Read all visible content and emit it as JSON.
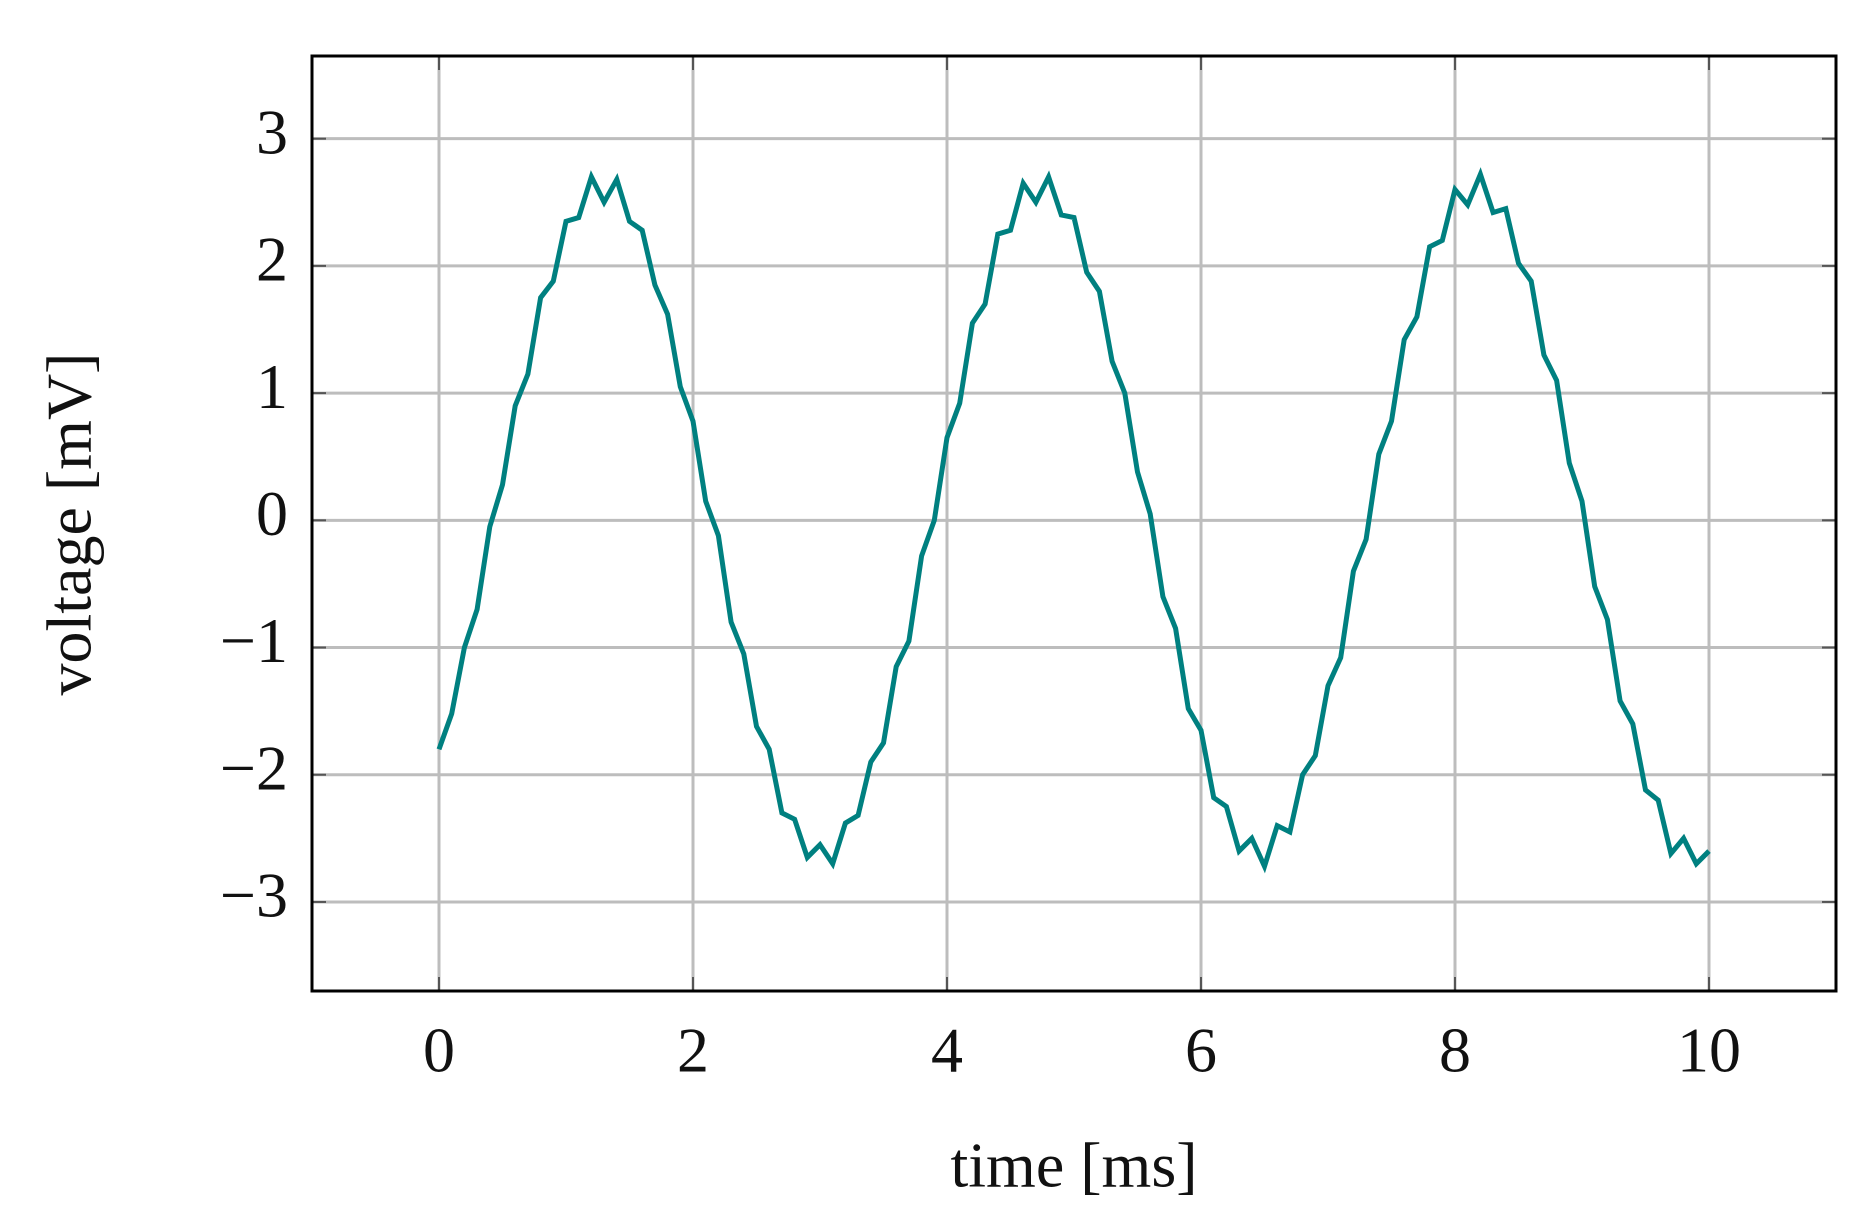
{
  "chart_data": {
    "type": "line",
    "x_label": "time [ms]",
    "y_label": "voltage [mV]",
    "x": [
      0,
      0.1,
      0.2,
      0.3,
      0.4,
      0.5,
      0.6,
      0.7,
      0.8,
      0.9,
      1,
      1.1,
      1.2,
      1.3,
      1.4,
      1.5,
      1.6,
      1.7,
      1.8,
      1.9,
      2,
      2.1,
      2.2,
      2.3,
      2.4,
      2.5,
      2.6,
      2.7,
      2.8,
      2.9,
      3,
      3.1,
      3.2,
      3.3,
      3.4,
      3.5,
      3.6,
      3.7,
      3.8,
      3.9,
      4,
      4.1,
      4.2,
      4.3,
      4.4,
      4.5,
      4.6,
      4.7,
      4.8,
      4.9,
      5,
      5.1,
      5.2,
      5.3,
      5.4,
      5.5,
      5.6,
      5.7,
      5.8,
      5.9,
      6,
      6.1,
      6.2,
      6.3,
      6.4,
      6.5,
      6.6,
      6.7,
      6.8,
      6.9,
      7,
      7.1,
      7.2,
      7.3,
      7.4,
      7.5,
      7.6,
      7.7,
      7.8,
      7.9,
      8,
      8.1,
      8.2,
      8.3,
      8.4,
      8.5,
      8.6,
      8.7,
      8.8,
      8.9,
      9,
      9.1,
      9.2,
      9.3,
      9.4,
      9.5,
      9.6,
      9.7,
      9.8,
      9.9,
      10
    ],
    "values": [
      -1.8,
      -1.52,
      -1.0,
      -0.7,
      -0.05,
      0.28,
      0.9,
      1.15,
      1.75,
      1.88,
      2.35,
      2.38,
      2.7,
      2.5,
      2.68,
      2.35,
      2.28,
      1.85,
      1.62,
      1.05,
      0.78,
      0.15,
      -0.12,
      -0.8,
      -1.05,
      -1.62,
      -1.8,
      -2.3,
      -2.35,
      -2.65,
      -2.55,
      -2.7,
      -2.38,
      -2.32,
      -1.9,
      -1.75,
      -1.15,
      -0.95,
      -0.28,
      0.0,
      0.65,
      0.92,
      1.55,
      1.7,
      2.25,
      2.28,
      2.65,
      2.5,
      2.7,
      2.4,
      2.38,
      1.95,
      1.8,
      1.25,
      1.0,
      0.38,
      0.05,
      -0.6,
      -0.85,
      -1.48,
      -1.65,
      -2.18,
      -2.25,
      -2.6,
      -2.5,
      -2.72,
      -2.4,
      -2.45,
      -2.0,
      -1.85,
      -1.3,
      -1.08,
      -0.4,
      -0.15,
      0.52,
      0.78,
      1.42,
      1.6,
      2.15,
      2.2,
      2.6,
      2.48,
      2.72,
      2.42,
      2.45,
      2.02,
      1.88,
      1.3,
      1.1,
      0.45,
      0.15,
      -0.52,
      -0.78,
      -1.42,
      -1.6,
      -2.12,
      -2.2,
      -2.62,
      -2.5,
      -2.7,
      -2.6
    ],
    "color": "#008080",
    "xlim": [
      -1,
      11
    ],
    "ylim": [
      -3.7,
      3.65
    ],
    "xticks": [
      0,
      2,
      4,
      6,
      8,
      10
    ],
    "yticks": [
      {
        "value": -3,
        "label": "−3"
      },
      {
        "value": -2,
        "label": "−2"
      },
      {
        "value": -1,
        "label": "−1"
      },
      0,
      1,
      2,
      3
    ],
    "grid": true
  }
}
